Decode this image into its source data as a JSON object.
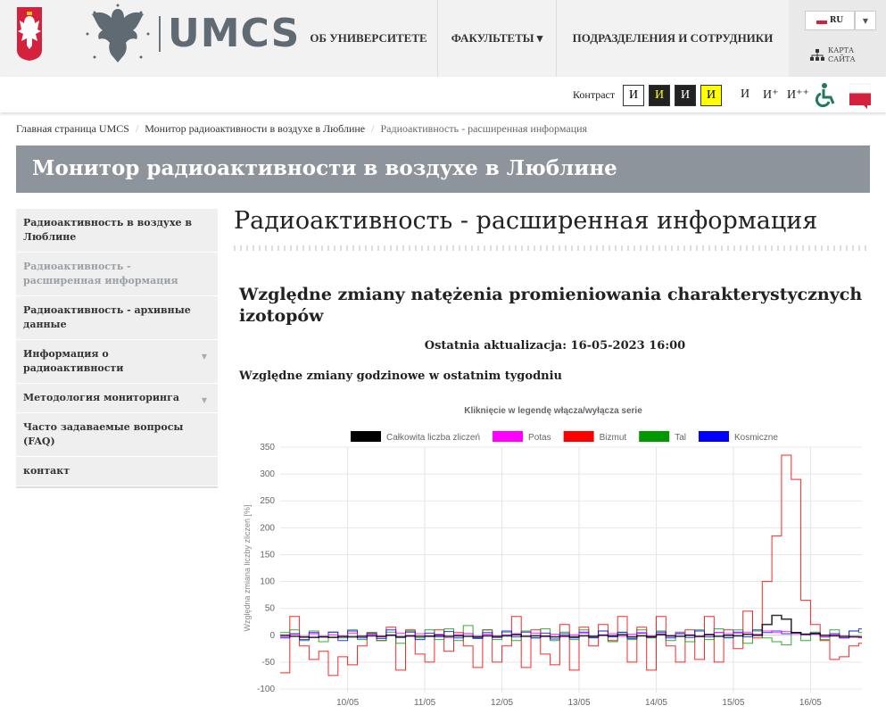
{
  "header": {
    "logo_text": "UMCS",
    "nav": [
      {
        "label": "ОБ УНИВЕРСИТЕТЕ"
      },
      {
        "label": "ФАКУЛЬТЕТЫ ▾"
      },
      {
        "label": "ПОДРАЗДЕЛЕНИЯ И СОТРУДНИКИ"
      }
    ],
    "lang": "RU",
    "sitemap": [
      "КАРТА",
      "САЙТА"
    ]
  },
  "access": {
    "contrast_label": "Контраст",
    "contrast_glyph": "И",
    "font_sizes": [
      "И",
      "И⁺",
      "И⁺⁺"
    ]
  },
  "breadcrumb": [
    {
      "label": "Главная страница UMCS"
    },
    {
      "label": "Монитор радиоактивности в воздухе в Люблине"
    },
    {
      "label": "Радиоактивность - расширенная информация"
    }
  ],
  "banner": "Монитор радиоактивности в воздухе в Люблине",
  "sidebar": [
    {
      "label": "Радиоактивность в воздухе в Люблине"
    },
    {
      "label": "Радиоактивность - расширенная информация"
    },
    {
      "label": "Радиоактивность - архивные данные"
    },
    {
      "label": "Информация о радиоактивности"
    },
    {
      "label": "Методология мониторинга"
    },
    {
      "label": "Часто задаваемые вопросы (FAQ)"
    },
    {
      "label": "контакт"
    }
  ],
  "main": {
    "title": "Радиоактивность - расширенная информация",
    "subtitle": "Względne zmiany natężenia promieniowania charakterystycznych izotopów",
    "updated": "Ostatnia aktualizacja: 16-05-2023 16:00",
    "section": "Względne zmiany godzinowe w ostatnim tygodniu"
  },
  "chart_data": {
    "type": "line",
    "step": true,
    "title": "Kliknięcie w legendę włącza/wyłącza serie",
    "ylabel": "Względna zmiana liczby zliczeń [%]",
    "ylim": [
      -100,
      350
    ],
    "yticks": [
      350,
      300,
      250,
      200,
      150,
      100,
      50,
      0,
      -50,
      -100
    ],
    "xlim": [
      "2023-05-09T03:00",
      "2023-05-16T16:00"
    ],
    "xticks": [
      "10/05",
      "11/05",
      "12/05",
      "13/05",
      "14/05",
      "15/05",
      "16/05"
    ],
    "x_start": "2023-05-09T03:00",
    "x_step_hours": 3,
    "grid": true,
    "legend": "top",
    "series": [
      {
        "name": "Całkowita liczba zliczeń",
        "color": "#000000",
        "values": [
          0,
          -2,
          -3,
          -4,
          -3,
          -4,
          -2,
          -3,
          -2,
          -1,
          -2,
          0,
          -3,
          -1,
          -2,
          -2,
          0,
          -2,
          -1,
          -2,
          -3,
          -1,
          -2,
          -1,
          1,
          -2,
          -1,
          -2,
          -3,
          -1,
          -3,
          -1,
          -2,
          0,
          -1,
          1,
          -3,
          -1,
          -3,
          1,
          -1,
          -2,
          0,
          -2,
          1,
          -2,
          0,
          -1,
          2,
          0,
          20,
          37,
          30,
          5,
          2,
          3,
          0,
          -1,
          -2,
          -3,
          -3
        ]
      },
      {
        "name": "Potas",
        "color": "#ff00ff",
        "values": [
          -3,
          2,
          -4,
          3,
          -2,
          1,
          -3,
          4,
          -2,
          2,
          -3,
          1,
          4,
          -2,
          3,
          -1,
          2,
          -4,
          1,
          3,
          -2,
          2,
          -3,
          1,
          3,
          -2,
          4,
          -1,
          2,
          -3,
          1,
          4,
          -2,
          1,
          3,
          -2,
          2,
          5,
          -1,
          3,
          -2,
          4,
          1,
          -3,
          2,
          5,
          3,
          4,
          6,
          2,
          8,
          5,
          7,
          3,
          1,
          2,
          -3,
          1,
          -4,
          -2,
          -5
        ]
      },
      {
        "name": "Bizmut",
        "color": "#ff0000",
        "values": [
          -70,
          35,
          -20,
          -45,
          -30,
          -75,
          -40,
          -55,
          -20,
          5,
          -10,
          15,
          -65,
          10,
          -35,
          -50,
          10,
          -30,
          5,
          -20,
          -60,
          10,
          -50,
          -20,
          35,
          -60,
          10,
          -35,
          -55,
          20,
          -65,
          15,
          -20,
          20,
          -10,
          35,
          -50,
          15,
          -65,
          35,
          -20,
          -50,
          10,
          -45,
          35,
          -50,
          10,
          -25,
          45,
          -5,
          100,
          185,
          335,
          290,
          65,
          20,
          -10,
          -45,
          -40,
          -20,
          -15
        ]
      },
      {
        "name": "Tal",
        "color": "#009900",
        "values": [
          5,
          10,
          -10,
          8,
          -12,
          6,
          -5,
          10,
          -8,
          5,
          -10,
          6,
          -15,
          8,
          -5,
          10,
          -8,
          12,
          -10,
          18,
          -5,
          10,
          -8,
          6,
          -10,
          8,
          -5,
          12,
          -10,
          6,
          -8,
          10,
          -5,
          8,
          -12,
          6,
          -8,
          10,
          -5,
          8,
          -10,
          6,
          -12,
          10,
          -8,
          12,
          -5,
          10,
          -15,
          8,
          -5,
          -12,
          -18,
          5,
          -10,
          6,
          -8,
          10,
          -5,
          8,
          5
        ]
      },
      {
        "name": "Kosmiczne",
        "color": "#0000ff",
        "values": [
          -5,
          3,
          -8,
          5,
          -3,
          6,
          -10,
          8,
          -5,
          3,
          -6,
          10,
          -4,
          6,
          -8,
          4,
          -3,
          7,
          -5,
          3,
          -6,
          5,
          -4,
          8,
          -3,
          6,
          -5,
          4,
          -7,
          3,
          -5,
          6,
          -4,
          8,
          -3,
          5,
          -6,
          4,
          -3,
          6,
          -5,
          3,
          -4,
          8,
          -3,
          5,
          -4,
          6,
          -3,
          10,
          5,
          8,
          3,
          5,
          2,
          4,
          -3,
          3,
          -5,
          8,
          12
        ]
      }
    ]
  }
}
